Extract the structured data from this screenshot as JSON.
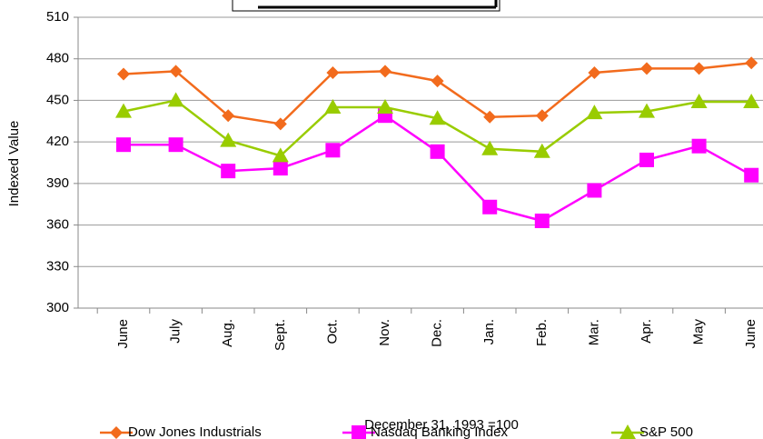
{
  "chart_data": {
    "type": "line",
    "x_label": "December 31, 1993 =100",
    "y_label": "Indexed Value",
    "categories": [
      "June",
      "July",
      "Aug.",
      "Sept.",
      "Oct.",
      "Nov.",
      "Dec.",
      "Jan.",
      "Feb.",
      "Mar.",
      "Apr.",
      "May",
      "June"
    ],
    "series": [
      {
        "name": "Dow Jones Industrials",
        "color": "#f26b1d",
        "marker": "diamond",
        "values": [
          469,
          471,
          439,
          433,
          470,
          471,
          464,
          438,
          439,
          470,
          473,
          473,
          477
        ]
      },
      {
        "name": "Nasdaq Banking Index",
        "color": "#ff00ff",
        "marker": "square",
        "values": [
          418,
          418,
          399,
          401,
          414,
          439,
          413,
          373,
          363,
          385,
          407,
          417,
          396
        ]
      },
      {
        "name": "S&P 500",
        "color": "#99cc00",
        "marker": "triangle",
        "values": [
          442,
          450,
          421,
          410,
          445,
          445,
          437,
          415,
          413,
          441,
          442,
          449,
          449
        ]
      }
    ],
    "ylim": [
      300,
      510
    ],
    "yticks": [
      300,
      330,
      360,
      390,
      420,
      450,
      480,
      510
    ],
    "grid": true
  }
}
